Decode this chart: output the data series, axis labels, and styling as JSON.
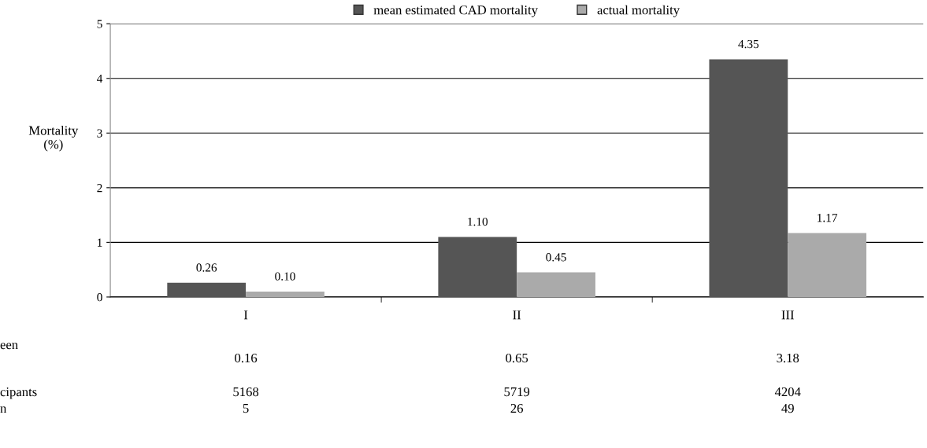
{
  "chart_data": {
    "type": "bar",
    "ylabel": "Mortality\n(%)",
    "categories": [
      "I",
      "II",
      "III"
    ],
    "series": [
      {
        "name": "mean estimated CAD mortality",
        "color": "#555555",
        "values": [
          0.26,
          1.1,
          4.35
        ],
        "value_labels": [
          "0.26",
          "1.10",
          "4.35"
        ]
      },
      {
        "name": "actual mortality",
        "color": "#aaaaaa",
        "values": [
          0.1,
          0.45,
          1.17
        ],
        "value_labels": [
          "0.10",
          "0.45",
          "1.17"
        ]
      }
    ],
    "ylim": [
      0,
      5
    ],
    "yticks": [
      0,
      1,
      2,
      3,
      4,
      5
    ],
    "grid": "y",
    "legend": "top",
    "annotations": [
      "een",
      "0.16",
      "0.65",
      "3.18",
      "cipants",
      "5168",
      "5719",
      "4204",
      "n",
      "5",
      "26",
      "49"
    ]
  }
}
